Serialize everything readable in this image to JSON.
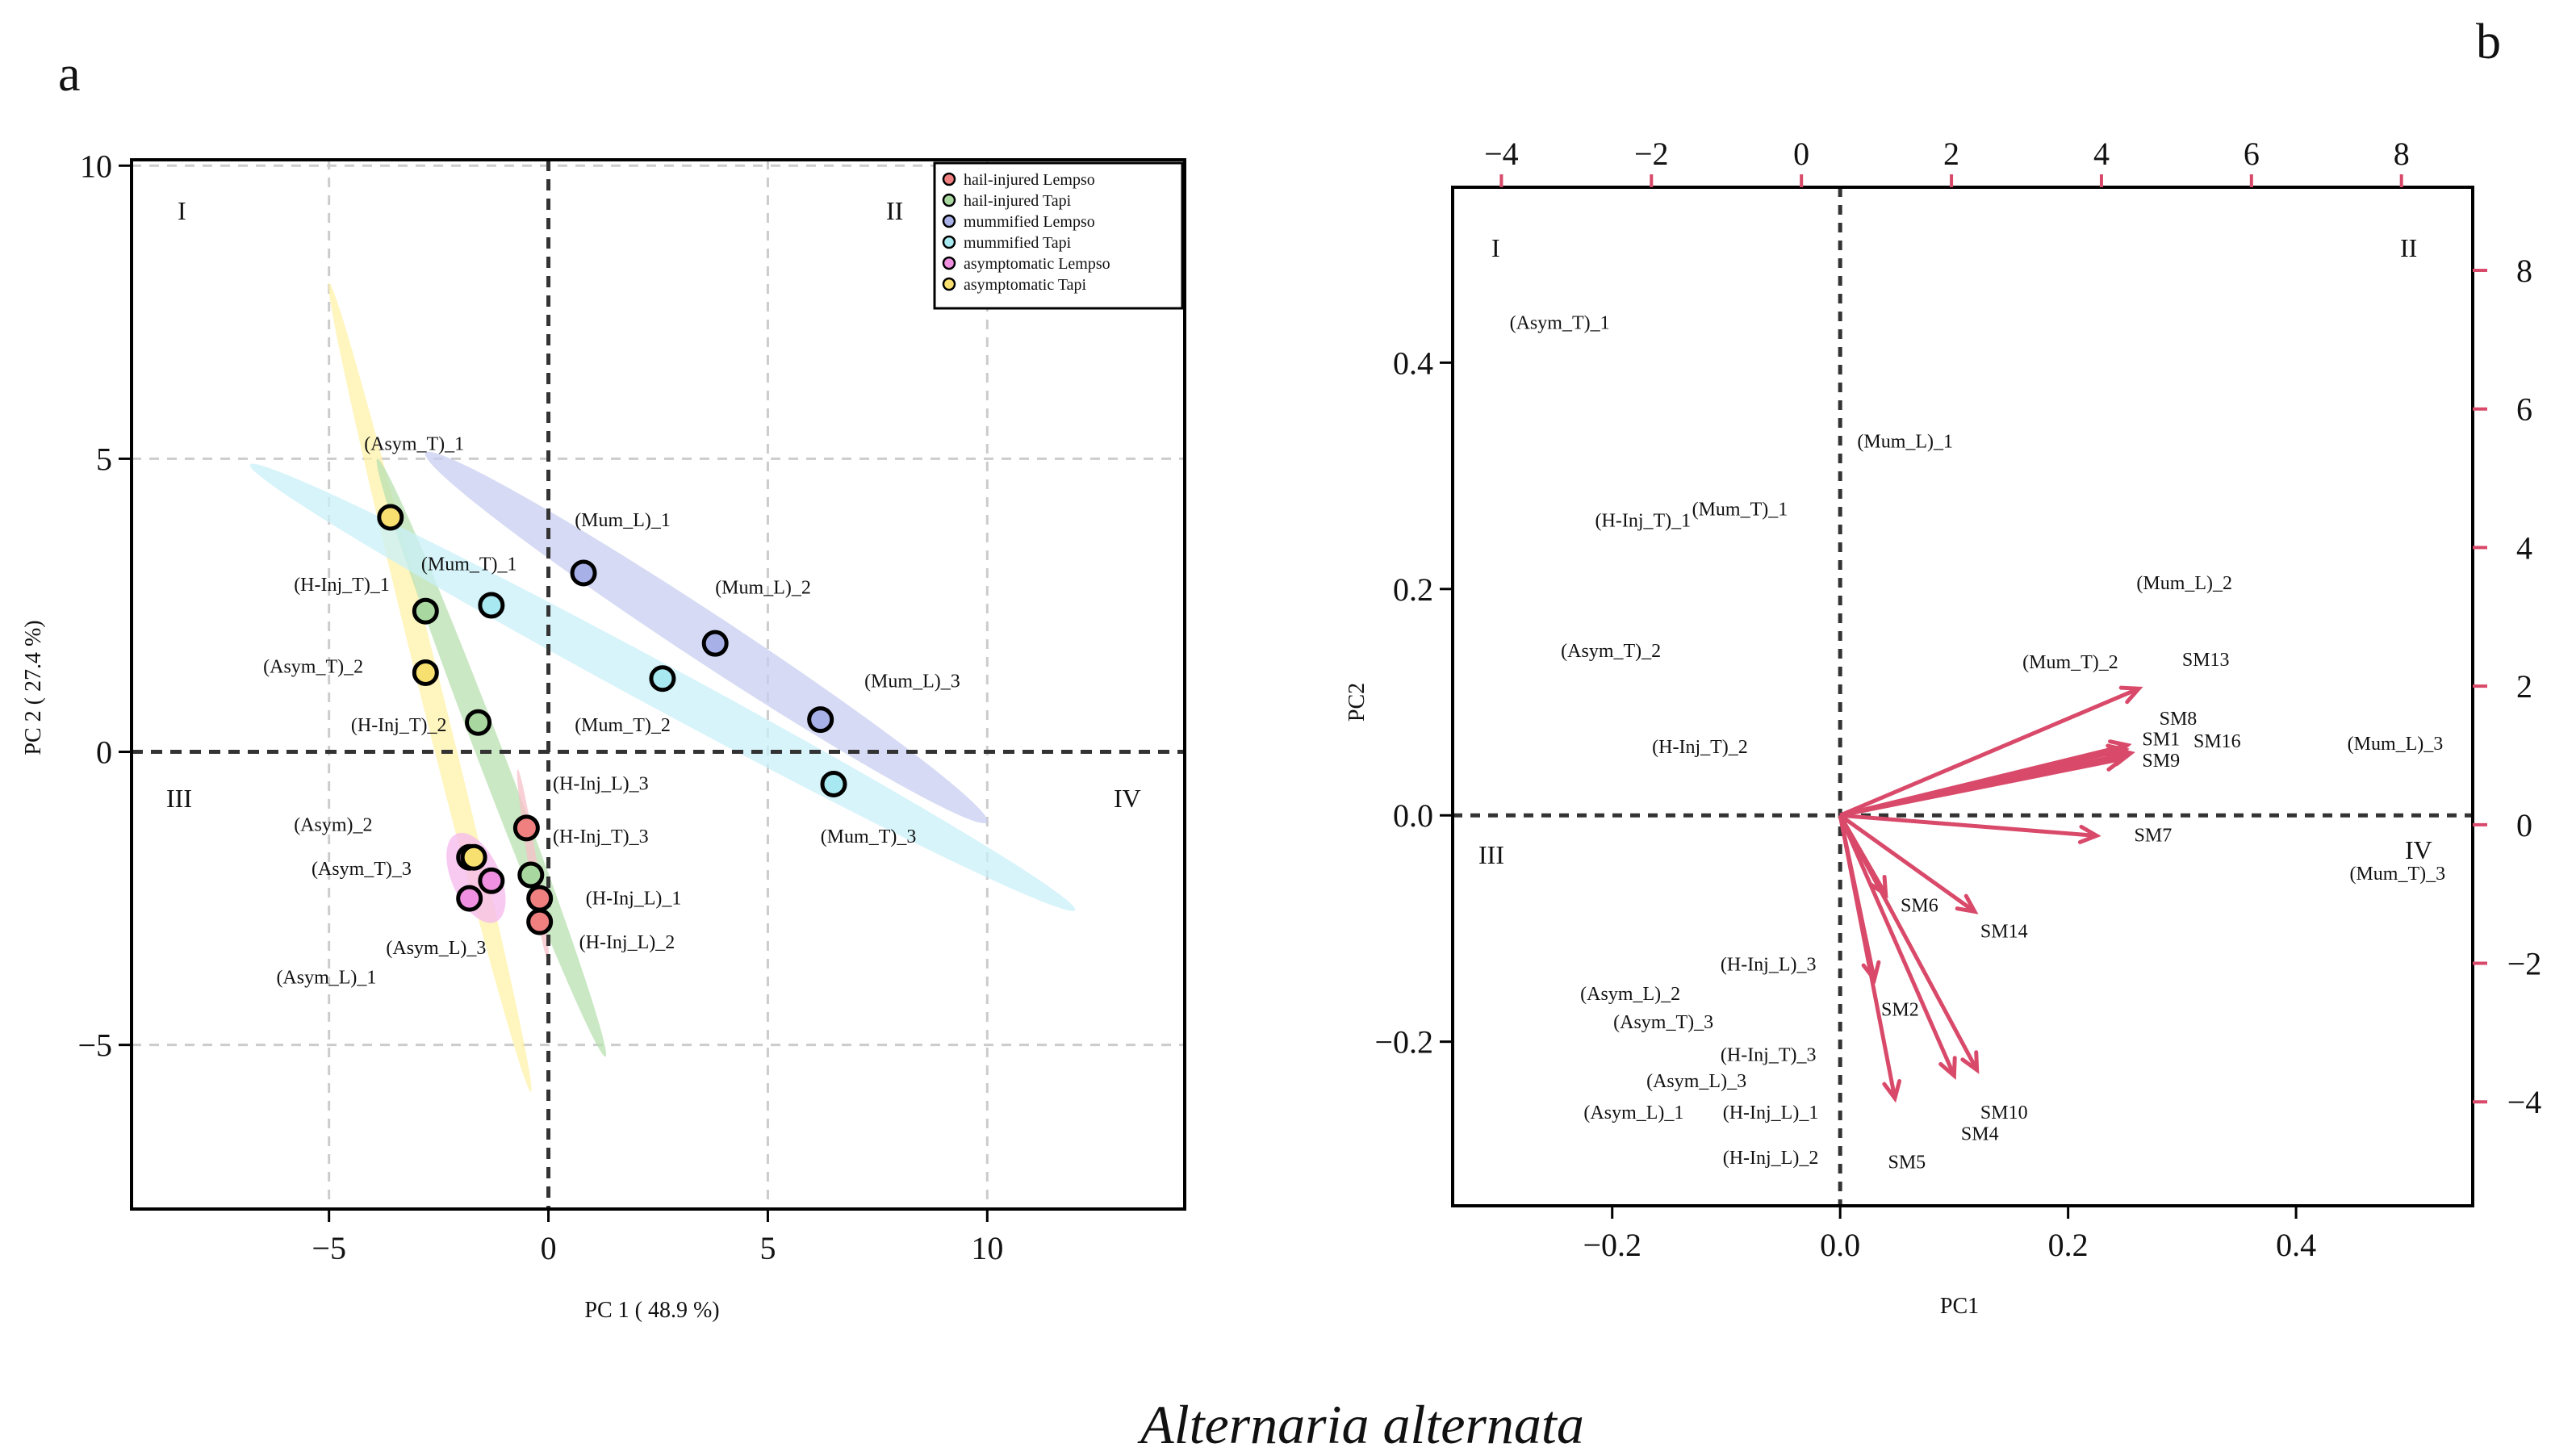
{
  "figure": {
    "caption": "Alternaria alternata",
    "colors": {
      "axis": "#000000",
      "grid": "#cccccc",
      "arrow": "#d94a6a"
    }
  },
  "chart_data": [
    {
      "panel": "a",
      "type": "scatter",
      "xlabel": "PC 1 ( 48.9 %)",
      "ylabel": "PC 2 ( 27.4 %)",
      "xlim": [
        -9.5,
        14.5
      ],
      "ylim": [
        -7.8,
        10.1
      ],
      "xticks": [
        -5,
        0,
        5,
        10
      ],
      "yticks": [
        -5,
        0,
        5,
        10
      ],
      "grid": true,
      "quadrants": [
        "I",
        "II",
        "III",
        "IV"
      ],
      "legend_position": "top-right",
      "series": [
        {
          "name": "hail-injured Lempso",
          "color": "#f08080",
          "points": [
            [
              -0.5,
              -1.3
            ],
            [
              -0.2,
              -2.5
            ],
            [
              -0.2,
              -2.9
            ]
          ]
        },
        {
          "name": "hail-injured Tapi",
          "color": "#a8d8a0",
          "points": [
            [
              -2.8,
              2.4
            ],
            [
              -1.6,
              0.5
            ],
            [
              -0.4,
              -2.1
            ]
          ]
        },
        {
          "name": "mummified Lempso",
          "color": "#a8b0e8",
          "points": [
            [
              0.8,
              3.05
            ],
            [
              3.8,
              1.85
            ],
            [
              6.2,
              0.55
            ]
          ]
        },
        {
          "name": "mummified Tapi",
          "color": "#a8e8f0",
          "points": [
            [
              -1.3,
              2.5
            ],
            [
              2.6,
              1.25
            ],
            [
              6.5,
              -0.55
            ]
          ]
        },
        {
          "name": "asymptomatic Lempso",
          "color": "#f090e0",
          "points": [
            [
              -1.8,
              -1.8
            ],
            [
              -1.3,
              -2.2
            ],
            [
              -1.8,
              -2.5
            ]
          ]
        },
        {
          "name": "asymptomatic Tapi",
          "color": "#f8e070",
          "points": [
            [
              -3.6,
              4.0
            ],
            [
              -2.8,
              1.35
            ],
            [
              -1.7,
              -1.8
            ]
          ]
        }
      ],
      "ellipses": [
        {
          "series": "asymptomatic Tapi",
          "color": "#fff2a8",
          "ends": [
            [
              -5.0,
              8.0
            ],
            [
              -0.4,
              -5.8
            ]
          ],
          "halfwidth": 0.25
        },
        {
          "series": "hail-injured Tapi",
          "color": "#b8e0b0",
          "ends": [
            [
              -3.9,
              5.0
            ],
            [
              1.3,
              -5.2
            ]
          ],
          "halfwidth": 0.3
        },
        {
          "series": "mummified Lempso",
          "color": "#c8cdf0",
          "ends": [
            [
              -2.8,
              5.1
            ],
            [
              10.0,
              -1.2
            ]
          ],
          "halfwidth": 0.55
        },
        {
          "series": "mummified Tapi",
          "color": "#c8f0f8",
          "ends": [
            [
              -6.8,
              4.9
            ],
            [
              12.0,
              -2.7
            ]
          ],
          "halfwidth": 0.5
        },
        {
          "series": "hail-injured Lempso",
          "color": "#f6c0c8",
          "ends": [
            [
              -0.7,
              -0.3
            ],
            [
              0.0,
              -3.6
            ]
          ],
          "halfwidth": 0.1
        },
        {
          "series": "asymptomatic Lempso",
          "color": "#f6b8ee",
          "ends": [
            [
              -2.1,
              -1.4
            ],
            [
              -1.2,
              -2.9
            ]
          ],
          "halfwidth": 0.55
        }
      ],
      "point_labels": [
        {
          "text": "(Asym_T)_1",
          "x": -4.2,
          "y": 5.15
        },
        {
          "text": "(Mum_L)_1",
          "x": 0.6,
          "y": 3.85
        },
        {
          "text": "(Mum_T)_1",
          "x": -2.9,
          "y": 3.1
        },
        {
          "text": "(Mum_L)_2",
          "x": 3.8,
          "y": 2.7
        },
        {
          "text": "(H-Inj_T)_1",
          "x": -5.8,
          "y": 2.75
        },
        {
          "text": "(Asym_T)_2",
          "x": -6.5,
          "y": 1.35
        },
        {
          "text": "(Mum_L)_3",
          "x": 7.2,
          "y": 1.1
        },
        {
          "text": "(H-Inj_T)_2",
          "x": -4.5,
          "y": 0.35
        },
        {
          "text": "(Mum_T)_2",
          "x": 0.6,
          "y": 0.35
        },
        {
          "text": "(H-Inj_L)_3",
          "x": 0.1,
          "y": -0.65
        },
        {
          "text": "(Asym)_2",
          "x": -5.8,
          "y": -1.35
        },
        {
          "text": "(H-Inj_T)_3",
          "x": 0.1,
          "y": -1.55
        },
        {
          "text": "(Mum_T)_3",
          "x": 6.2,
          "y": -1.55
        },
        {
          "text": "(Asym_T)_3",
          "x": -5.4,
          "y": -2.1
        },
        {
          "text": "(H-Inj_L)_1",
          "x": 0.85,
          "y": -2.6
        },
        {
          "text": "(H-Inj_L)_2",
          "x": 0.7,
          "y": -3.35
        },
        {
          "text": "(Asym_L)_3",
          "x": -3.7,
          "y": -3.45
        },
        {
          "text": "(Asym_L)_1",
          "x": -6.2,
          "y": -3.95
        }
      ]
    },
    {
      "panel": "b",
      "type": "scatter",
      "subtype": "biplot",
      "xlabel": "PC1",
      "ylabel": "PC2",
      "xlim": [
        -0.34,
        0.555
      ],
      "ylim": [
        -0.345,
        0.555
      ],
      "xticks": [
        -0.2,
        0.0,
        0.2,
        0.4
      ],
      "yticks": [
        -0.2,
        0.0,
        0.2,
        0.4
      ],
      "xlim_top": [
        -4.65,
        8.95
      ],
      "ylim_right": [
        -5.5,
        9.2
      ],
      "xticks_top": [
        -4,
        -2,
        0,
        2,
        4,
        6,
        8
      ],
      "yticks_right": [
        -4,
        -2,
        0,
        2,
        4,
        6,
        8
      ],
      "quadrants": [
        "I",
        "II",
        "III",
        "IV"
      ],
      "sample_labels": [
        {
          "text": "(Asym_T)_1",
          "x": -0.29,
          "y": 0.43
        },
        {
          "text": "(Mum_L)_1",
          "x": 0.015,
          "y": 0.325
        },
        {
          "text": "(H-Inj_T)_1",
          "x": -0.215,
          "y": 0.255
        },
        {
          "text": "(Mum_T)_1",
          "x": -0.13,
          "y": 0.265
        },
        {
          "text": "(Mum_L)_2",
          "x": 0.26,
          "y": 0.2
        },
        {
          "text": "(Asym_T)_2",
          "x": -0.245,
          "y": 0.14
        },
        {
          "text": "(Mum_T)_2",
          "x": 0.16,
          "y": 0.13
        },
        {
          "text": "(H-Inj_T)_2",
          "x": -0.165,
          "y": 0.055
        },
        {
          "text": "(Mum_L)_3",
          "x": 0.445,
          "y": 0.058
        },
        {
          "text": "(Mum_T)_3",
          "x": 0.447,
          "y": -0.057
        },
        {
          "text": "(H-Inj_L)_3",
          "x": -0.105,
          "y": -0.137
        },
        {
          "text": "(Asym_L)_2",
          "x": -0.228,
          "y": -0.163
        },
        {
          "text": "(Asym_T)_3",
          "x": -0.199,
          "y": -0.188
        },
        {
          "text": "(H-Inj_T)_3",
          "x": -0.105,
          "y": -0.217
        },
        {
          "text": "(Asym_L)_3",
          "x": -0.17,
          "y": -0.24
        },
        {
          "text": "(Asym_L)_1",
          "x": -0.225,
          "y": -0.268
        },
        {
          "text": "(H-Inj_L)_1",
          "x": -0.103,
          "y": -0.268
        },
        {
          "text": "(H-Inj_L)_2",
          "x": -0.103,
          "y": -0.308
        }
      ],
      "loadings": [
        {
          "name": "SM13",
          "x": 0.262,
          "y": 0.112,
          "label_x": 0.3,
          "label_y": 0.132
        },
        {
          "name": "SM8",
          "x": 0.252,
          "y": 0.062,
          "label_x": 0.28,
          "label_y": 0.08
        },
        {
          "name": "SM1",
          "x": 0.25,
          "y": 0.058,
          "label_x": 0.265,
          "label_y": 0.062
        },
        {
          "name": "SM16",
          "x": 0.255,
          "y": 0.055,
          "label_x": 0.31,
          "label_y": 0.06
        },
        {
          "name": "SM9",
          "x": 0.248,
          "y": 0.05,
          "label_x": 0.265,
          "label_y": 0.043
        },
        {
          "name": "SM7",
          "x": 0.225,
          "y": -0.018,
          "label_x": 0.258,
          "label_y": -0.023
        },
        {
          "name": "SM6",
          "x": 0.04,
          "y": -0.07,
          "label_x": 0.053,
          "label_y": -0.085
        },
        {
          "name": "SM14",
          "x": 0.118,
          "y": -0.085,
          "label_x": 0.123,
          "label_y": -0.108
        },
        {
          "name": "SM2",
          "x": 0.03,
          "y": -0.145,
          "label_x": 0.036,
          "label_y": -0.177
        },
        {
          "name": "SM10",
          "x": 0.12,
          "y": -0.225,
          "label_x": 0.123,
          "label_y": -0.268
        },
        {
          "name": "SM4",
          "x": 0.1,
          "y": -0.23,
          "label_x": 0.106,
          "label_y": -0.287
        },
        {
          "name": "SM5",
          "x": 0.048,
          "y": -0.25,
          "label_x": 0.042,
          "label_y": -0.312
        }
      ]
    }
  ]
}
